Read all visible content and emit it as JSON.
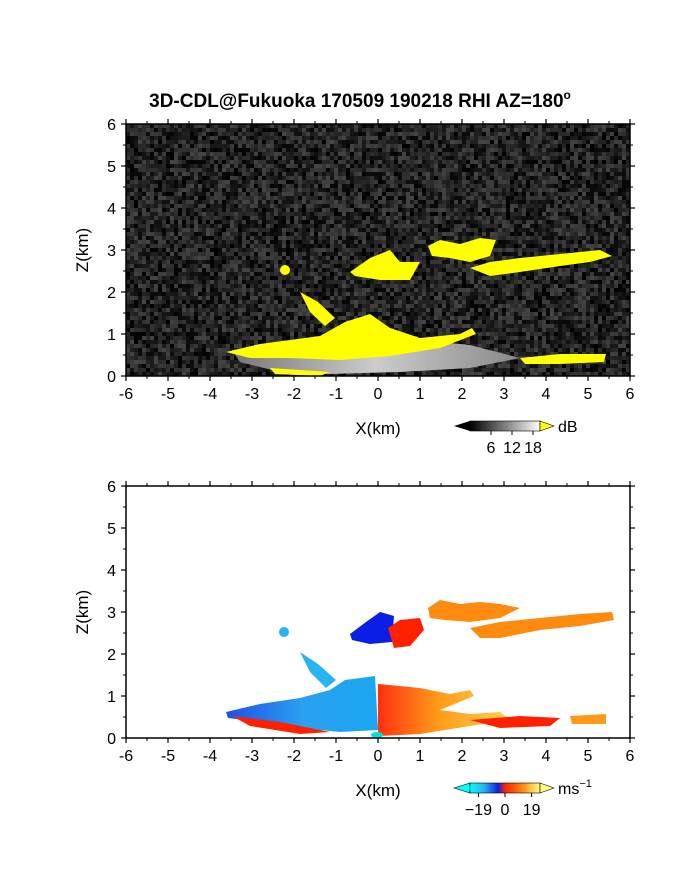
{
  "title": "3D-CDL@Fukuoka 170509 190218 RHI AZ=180",
  "title_superscript": "o",
  "chart_data": [
    {
      "type": "heatmap",
      "name_field": "reflectivity",
      "xlabel": "X(km)",
      "ylabel": "Z(km)",
      "xlim": [
        -6,
        6
      ],
      "ylim": [
        0,
        6
      ],
      "xticks": [
        "-6",
        "-5",
        "-4",
        "-3",
        "-2",
        "-1",
        "0",
        "1",
        "2",
        "3",
        "4",
        "5",
        "6"
      ],
      "yticks": [
        "0",
        "1",
        "2",
        "3",
        "4",
        "5",
        "6"
      ],
      "background": "noise-gray",
      "colorbar": {
        "unit": "dB",
        "ticks": [
          "6",
          "12",
          "18"
        ],
        "range": [
          0,
          20
        ],
        "saturation_color": "#ffff00"
      }
    },
    {
      "type": "heatmap",
      "name_field": "doppler-velocity",
      "xlabel": "X(km)",
      "ylabel": "Z(km)",
      "xlim": [
        -6,
        6
      ],
      "ylim": [
        0,
        6
      ],
      "xticks": [
        "-6",
        "-5",
        "-4",
        "-3",
        "-2",
        "-1",
        "0",
        "1",
        "2",
        "3",
        "4",
        "5",
        "6"
      ],
      "yticks": [
        "0",
        "1",
        "2",
        "3",
        "4",
        "5",
        "6"
      ],
      "colorbar": {
        "unit": "ms",
        "unit_superscript": "−1",
        "ticks": [
          "−19",
          "0",
          "19"
        ],
        "range": [
          -25,
          25
        ]
      }
    }
  ],
  "colors": {
    "yellow": "#ffff00",
    "blue_dark": "#0a1ee6",
    "blue_light": "#28b4f0",
    "red": "#ff2000",
    "orange": "#ff8a10"
  }
}
